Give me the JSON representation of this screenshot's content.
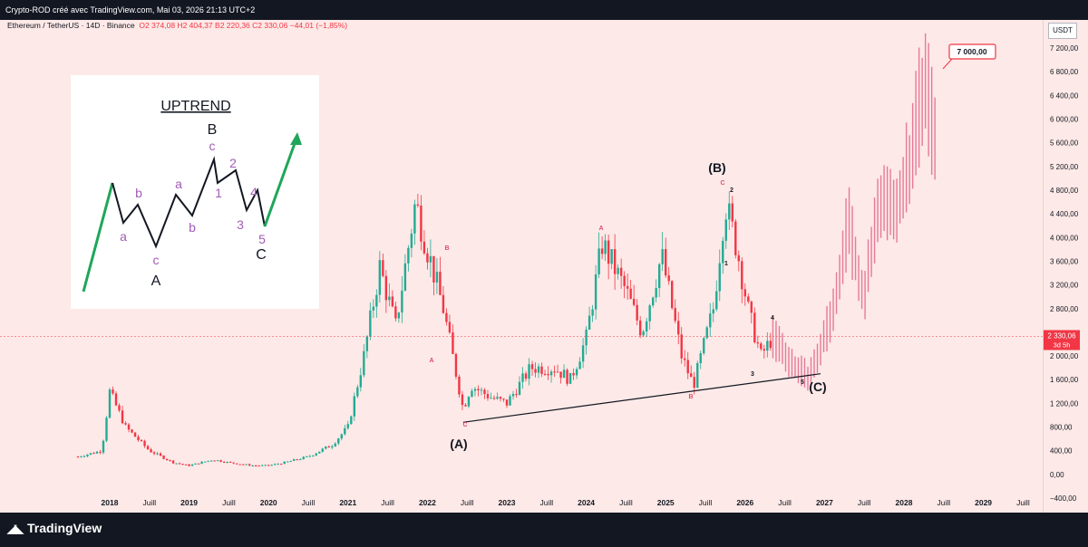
{
  "topbar": {
    "caption": "Crypto-ROD créé avec TradingView.com, Mai 03, 2026 21:13 UTC+2"
  },
  "legend": {
    "symbol": "Ethereum / TetherUS · 14D · Binance",
    "ohlc": "O2 374,08  H2 404,37  B2 220,36  C2 330,06  −44,01 (−1,85%)"
  },
  "axis": {
    "currency": "USDT",
    "price_ticks": [
      "7 200,00",
      "6 800,00",
      "6 400,00",
      "6 000,00",
      "5 600,00",
      "5 200,00",
      "4 800,00",
      "4 400,00",
      "4 000,00",
      "3 600,00",
      "3 200,00",
      "2 800,00",
      "2 000,00",
      "1 600,00",
      "1 200,00",
      "800,00",
      "400,00",
      "0,00",
      "−400,00"
    ],
    "time_ticks": [
      "2018",
      "Juill",
      "2019",
      "Juill",
      "2020",
      "Juill",
      "2021",
      "Juill",
      "2022",
      "Juill",
      "2023",
      "Juill",
      "2024",
      "Juill",
      "2025",
      "Juill",
      "2026",
      "Juill",
      "2027",
      "Juill",
      "2028",
      "Juill",
      "2029",
      "Juill"
    ],
    "current_price": "2 330,06",
    "countdown": "3d 5h"
  },
  "target_label": "7 000,00",
  "waves": {
    "A_major": "(A)",
    "B_major": "(B)",
    "C_major": "(C)",
    "small": [
      "A",
      "B",
      "C",
      "A",
      "B",
      "C",
      "2",
      "1",
      "3",
      "4",
      "5"
    ]
  },
  "inset": {
    "title": "UPTREND",
    "labels": [
      "B",
      "c",
      "2",
      "b",
      "a",
      "1",
      "a",
      "b",
      "3",
      "4",
      "5",
      "c",
      "C",
      "A"
    ]
  },
  "brand": {
    "name": "TradingView"
  },
  "colors": {
    "background": "#fde9e7",
    "up": "#22ab94",
    "down": "#f23645",
    "projection": "#e57a9a",
    "bars": "#131722"
  },
  "chart_data": {
    "type": "candlestick",
    "series": [
      {
        "name": "ETHUSDT",
        "x": [
          2017.6,
          2017.9,
          2018.0,
          2018.2,
          2018.5,
          2018.8,
          2019.0,
          2019.3,
          2019.5,
          2019.8,
          2020.0,
          2020.2,
          2020.5,
          2020.8,
          2021.0,
          2021.2,
          2021.4,
          2021.6,
          2021.85,
          2022.0,
          2022.2,
          2022.45,
          2022.55,
          2022.8,
          2023.0,
          2023.3,
          2023.6,
          2023.8,
          2024.0,
          2024.2,
          2024.5,
          2024.7,
          2024.95,
          2025.2,
          2025.35,
          2025.6,
          2025.75,
          2025.9,
          2026.05,
          2026.2,
          2026.35
        ],
        "values": [
          300,
          400,
          1400,
          800,
          400,
          200,
          150,
          250,
          200,
          150,
          150,
          200,
          300,
          500,
          800,
          2000,
          3500,
          2500,
          4600,
          3800,
          2800,
          1100,
          1500,
          1300,
          1200,
          1800,
          1800,
          1600,
          2300,
          3900,
          3100,
          2400,
          3700,
          2000,
          1500,
          2800,
          4600,
          3800,
          2700,
          2000,
          2330
        ]
      },
      {
        "name": "Projection",
        "x": [
          2026.35,
          2026.6,
          2026.8,
          2026.95,
          2027.1,
          2027.3,
          2027.5,
          2027.7,
          2027.9,
          2028.1,
          2028.25,
          2028.4
        ],
        "values": [
          2330,
          1900,
          1700,
          2200,
          2800,
          4300,
          3100,
          4800,
          4600,
          5500,
          6800,
          5800
        ]
      }
    ],
    "ylim": [
      -400,
      7400
    ]
  }
}
